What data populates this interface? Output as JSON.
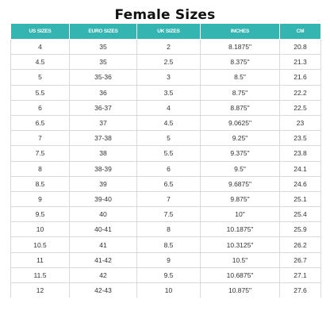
{
  "title": "Female Sizes",
  "accent_color": "#34b5b1",
  "table": {
    "headers": [
      "US SIZES",
      "EURO SIZES",
      "UK SIZES",
      "INCHES",
      "CM"
    ],
    "rows": [
      [
        "4",
        "35",
        "2",
        "8.1875\"",
        "20.8"
      ],
      [
        "4.5",
        "35",
        "2.5",
        "8.375\"",
        "21.3"
      ],
      [
        "5",
        "35-36",
        "3",
        "8.5\"",
        "21.6"
      ],
      [
        "5.5",
        "36",
        "3.5",
        "8.75\"",
        "22.2"
      ],
      [
        "6",
        "36-37",
        "4",
        "8.875\"",
        "22.5"
      ],
      [
        "6.5",
        "37",
        "4.5",
        "9.0625\"",
        "23"
      ],
      [
        "7",
        "37-38",
        "5",
        "9.25\"",
        "23.5"
      ],
      [
        "7.5",
        "38",
        "5.5",
        "9.375\"",
        "23.8"
      ],
      [
        "8",
        "38-39",
        "6",
        "9.5\"",
        "24.1"
      ],
      [
        "8.5",
        "39",
        "6.5",
        "9.6875\"",
        "24.6"
      ],
      [
        "9",
        "39-40",
        "7",
        "9.875\"",
        "25.1"
      ],
      [
        "9.5",
        "40",
        "7.5",
        "10\"",
        "25.4"
      ],
      [
        "10",
        "40-41",
        "8",
        "10.1875\"",
        "25.9"
      ],
      [
        "10.5",
        "41",
        "8.5",
        "10.3125\"",
        "26.2"
      ],
      [
        "11",
        "41-42",
        "9",
        "10.5\"",
        "26.7"
      ],
      [
        "11.5",
        "42",
        "9.5",
        "10.6875\"",
        "27.1"
      ],
      [
        "12",
        "42-43",
        "10",
        "10.875\"",
        "27.6"
      ]
    ]
  }
}
